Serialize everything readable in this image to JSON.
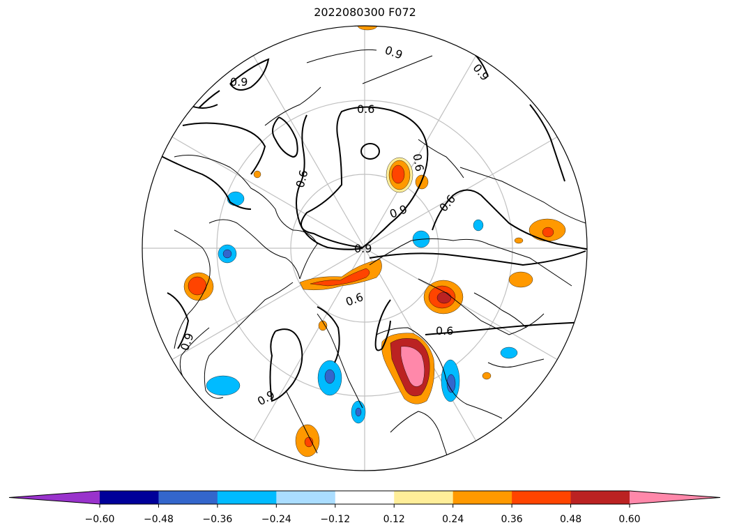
{
  "title": "2022080300 F072",
  "colorbar": {
    "bins": [
      {
        "color": "#9933cc"
      },
      {
        "color": "#000099"
      },
      {
        "color": "#3366cc"
      },
      {
        "color": "#00bbff"
      },
      {
        "color": "#aaddff"
      },
      {
        "color": "#ffffff"
      },
      {
        "color": "#ffee99"
      },
      {
        "color": "#ff9900"
      },
      {
        "color": "#ff4400"
      },
      {
        "color": "#bb2222"
      },
      {
        "color": "#ff88aa"
      }
    ],
    "tick_labels": [
      "−0.60",
      "−0.48",
      "−0.36",
      "−0.24",
      "−0.12",
      "0.12",
      "0.24",
      "0.36",
      "0.48",
      "0.60"
    ]
  },
  "contour_labels": [
    "0.9",
    "0.6",
    "0.9",
    "0.9",
    "0.6",
    "0.9",
    "0.6",
    "0.9",
    "0.6",
    "0.6",
    "0.6",
    "0.9",
    "0.9"
  ]
}
